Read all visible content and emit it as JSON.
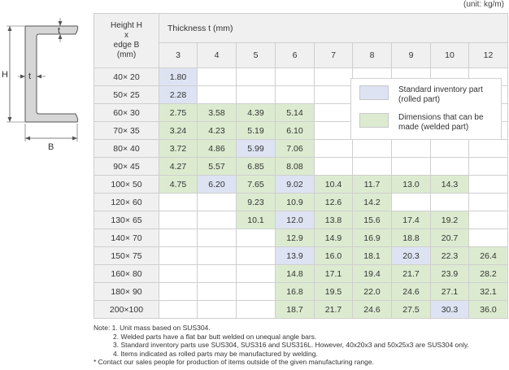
{
  "unit_label": "(unit: kg/m)",
  "diagram": {
    "h": "H",
    "t_top": "t",
    "t_web": "t",
    "b": "B"
  },
  "header": {
    "hb_lines": [
      "Height H",
      "x",
      "edge B",
      "(mm)"
    ],
    "thickness_label": "Thickness t (mm)",
    "thicknesses": [
      "3",
      "4",
      "5",
      "6",
      "7",
      "8",
      "9",
      "10",
      "12"
    ]
  },
  "rows": [
    {
      "size": "40× 20",
      "cells": [
        {
          "v": "1.80",
          "c": "b"
        },
        {
          "v": "",
          "c": ""
        },
        {
          "v": "",
          "c": ""
        },
        {
          "v": "",
          "c": ""
        },
        {
          "v": "",
          "c": ""
        },
        {
          "v": "",
          "c": ""
        },
        {
          "v": "",
          "c": ""
        },
        {
          "v": "",
          "c": ""
        },
        {
          "v": "",
          "c": ""
        }
      ]
    },
    {
      "size": "50× 25",
      "cells": [
        {
          "v": "2.28",
          "c": "b"
        },
        {
          "v": "",
          "c": ""
        },
        {
          "v": "",
          "c": ""
        },
        {
          "v": "",
          "c": ""
        },
        {
          "v": "",
          "c": ""
        },
        {
          "v": "",
          "c": ""
        },
        {
          "v": "",
          "c": ""
        },
        {
          "v": "",
          "c": ""
        },
        {
          "v": "",
          "c": ""
        }
      ]
    },
    {
      "size": "60× 30",
      "cells": [
        {
          "v": "2.75",
          "c": "g"
        },
        {
          "v": "3.58",
          "c": "g"
        },
        {
          "v": "4.39",
          "c": "g"
        },
        {
          "v": "5.14",
          "c": "g"
        },
        {
          "v": "",
          "c": ""
        },
        {
          "v": "",
          "c": ""
        },
        {
          "v": "",
          "c": ""
        },
        {
          "v": "",
          "c": ""
        },
        {
          "v": "",
          "c": ""
        }
      ]
    },
    {
      "size": "70× 35",
      "cells": [
        {
          "v": "3.24",
          "c": "g"
        },
        {
          "v": "4.23",
          "c": "g"
        },
        {
          "v": "5.19",
          "c": "g"
        },
        {
          "v": "6.10",
          "c": "g"
        },
        {
          "v": "",
          "c": ""
        },
        {
          "v": "",
          "c": ""
        },
        {
          "v": "",
          "c": ""
        },
        {
          "v": "",
          "c": ""
        },
        {
          "v": "",
          "c": ""
        }
      ]
    },
    {
      "size": "80× 40",
      "cells": [
        {
          "v": "3.72",
          "c": "g"
        },
        {
          "v": "4.86",
          "c": "g"
        },
        {
          "v": "5.99",
          "c": "b"
        },
        {
          "v": "7.06",
          "c": "g"
        },
        {
          "v": "",
          "c": ""
        },
        {
          "v": "",
          "c": ""
        },
        {
          "v": "",
          "c": ""
        },
        {
          "v": "",
          "c": ""
        },
        {
          "v": "",
          "c": ""
        }
      ]
    },
    {
      "size": "90× 45",
      "cells": [
        {
          "v": "4.27",
          "c": "g"
        },
        {
          "v": "5.57",
          "c": "g"
        },
        {
          "v": "6.85",
          "c": "g"
        },
        {
          "v": "8.08",
          "c": "g"
        },
        {
          "v": "",
          "c": ""
        },
        {
          "v": "",
          "c": ""
        },
        {
          "v": "",
          "c": ""
        },
        {
          "v": "",
          "c": ""
        },
        {
          "v": "",
          "c": ""
        }
      ]
    },
    {
      "size": "100× 50",
      "cells": [
        {
          "v": "4.75",
          "c": "g"
        },
        {
          "v": "6.20",
          "c": "b"
        },
        {
          "v": "7.65",
          "c": "g"
        },
        {
          "v": "9.02",
          "c": "b"
        },
        {
          "v": "10.4",
          "c": "g"
        },
        {
          "v": "11.7",
          "c": "g"
        },
        {
          "v": "13.0",
          "c": "g"
        },
        {
          "v": "14.3",
          "c": "g"
        },
        {
          "v": "",
          "c": ""
        }
      ]
    },
    {
      "size": "120× 60",
      "cells": [
        {
          "v": "",
          "c": ""
        },
        {
          "v": "",
          "c": ""
        },
        {
          "v": "9.23",
          "c": "g"
        },
        {
          "v": "10.9",
          "c": "g"
        },
        {
          "v": "12.6",
          "c": "g"
        },
        {
          "v": "14.2",
          "c": "g"
        },
        {
          "v": "",
          "c": ""
        },
        {
          "v": "",
          "c": ""
        },
        {
          "v": "",
          "c": ""
        }
      ]
    },
    {
      "size": "130× 65",
      "cells": [
        {
          "v": "",
          "c": ""
        },
        {
          "v": "",
          "c": ""
        },
        {
          "v": "10.1",
          "c": "g"
        },
        {
          "v": "12.0",
          "c": "b"
        },
        {
          "v": "13.8",
          "c": "g"
        },
        {
          "v": "15.6",
          "c": "g"
        },
        {
          "v": "17.4",
          "c": "g"
        },
        {
          "v": "19.2",
          "c": "g"
        },
        {
          "v": "",
          "c": ""
        }
      ]
    },
    {
      "size": "140× 70",
      "cells": [
        {
          "v": "",
          "c": ""
        },
        {
          "v": "",
          "c": ""
        },
        {
          "v": "",
          "c": ""
        },
        {
          "v": "12.9",
          "c": "g"
        },
        {
          "v": "14.9",
          "c": "g"
        },
        {
          "v": "16.9",
          "c": "g"
        },
        {
          "v": "18.8",
          "c": "g"
        },
        {
          "v": "20.7",
          "c": "g"
        },
        {
          "v": "",
          "c": ""
        }
      ]
    },
    {
      "size": "150× 75",
      "cells": [
        {
          "v": "",
          "c": ""
        },
        {
          "v": "",
          "c": ""
        },
        {
          "v": "",
          "c": ""
        },
        {
          "v": "13.9",
          "c": "b"
        },
        {
          "v": "16.0",
          "c": "g"
        },
        {
          "v": "18.1",
          "c": "g"
        },
        {
          "v": "20.3",
          "c": "b"
        },
        {
          "v": "22.3",
          "c": "g"
        },
        {
          "v": "26.4",
          "c": "g"
        }
      ]
    },
    {
      "size": "160× 80",
      "cells": [
        {
          "v": "",
          "c": ""
        },
        {
          "v": "",
          "c": ""
        },
        {
          "v": "",
          "c": ""
        },
        {
          "v": "14.8",
          "c": "g"
        },
        {
          "v": "17.1",
          "c": "g"
        },
        {
          "v": "19.4",
          "c": "g"
        },
        {
          "v": "21.7",
          "c": "g"
        },
        {
          "v": "23.9",
          "c": "g"
        },
        {
          "v": "28.2",
          "c": "g"
        }
      ]
    },
    {
      "size": "180× 90",
      "cells": [
        {
          "v": "",
          "c": ""
        },
        {
          "v": "",
          "c": ""
        },
        {
          "v": "",
          "c": ""
        },
        {
          "v": "16.8",
          "c": "g"
        },
        {
          "v": "19.5",
          "c": "g"
        },
        {
          "v": "22.0",
          "c": "g"
        },
        {
          "v": "24.6",
          "c": "g"
        },
        {
          "v": "27.1",
          "c": "g"
        },
        {
          "v": "32.1",
          "c": "g"
        }
      ]
    },
    {
      "size": "200×100",
      "cells": [
        {
          "v": "",
          "c": ""
        },
        {
          "v": "",
          "c": ""
        },
        {
          "v": "",
          "c": ""
        },
        {
          "v": "18.7",
          "c": "g"
        },
        {
          "v": "21.7",
          "c": "g"
        },
        {
          "v": "24.6",
          "c": "g"
        },
        {
          "v": "27.5",
          "c": "g"
        },
        {
          "v": "30.3",
          "c": "b"
        },
        {
          "v": "36.0",
          "c": "g"
        }
      ]
    }
  ],
  "legend": {
    "standard": "Standard inventory part\n (rolled part)",
    "welded": "Dimensions that can be\nmade (welded part)"
  },
  "colors": {
    "standard": "#dde3f2",
    "welded": "#dcebd0",
    "header_bg": "#f0f0f0"
  },
  "notes": [
    "Note: 1. Unit mass based on SUS304.",
    "2. Welded parts have a flat bar butt welded on unequal angle bars.",
    "3. Standard inventory parts use SUS304, SUS316 and SUS316L. However, 40x20x3 and 50x25x3 are SUS304 only.",
    "4. Items indicated as rolled parts may be manufactured by welding.",
    "* Contact our sales people for production of items outside of the given manufacturing range."
  ]
}
